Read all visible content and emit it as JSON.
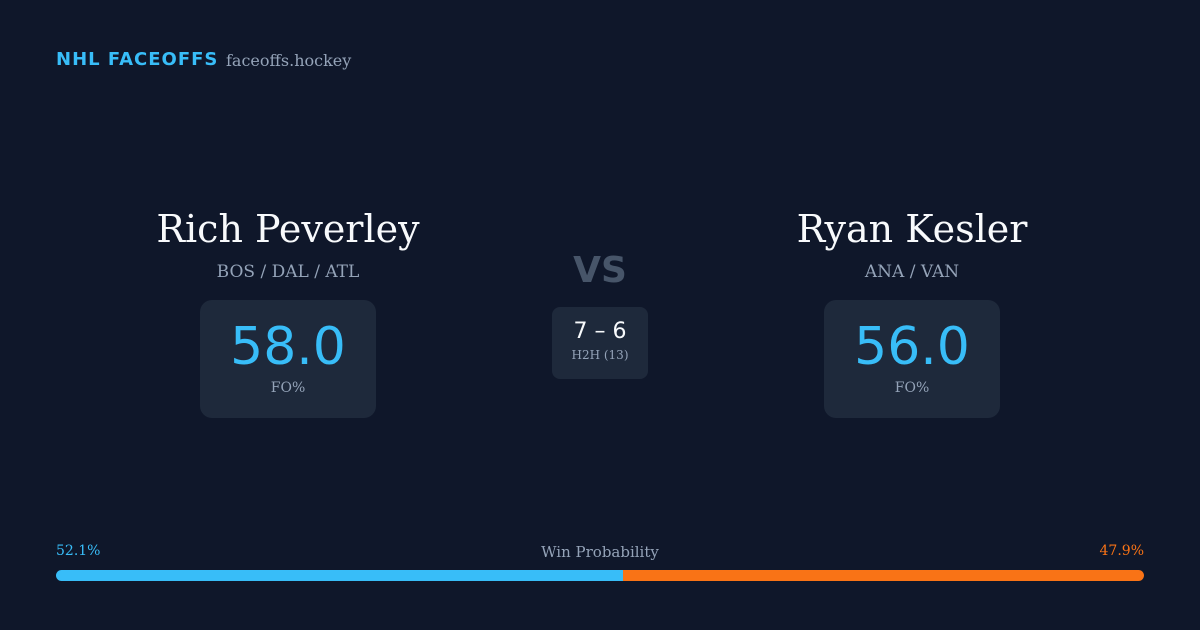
{
  "header": {
    "brand": "NHL FACEOFFS",
    "site": "faceoffs.hockey"
  },
  "players": [
    {
      "name": "Rich Peverley",
      "teams": "BOS / DAL / ATL",
      "fo_pct": "58.0",
      "fo_label": "FO%"
    },
    {
      "name": "Ryan Kesler",
      "teams": "ANA / VAN",
      "fo_pct": "56.0",
      "fo_label": "FO%"
    }
  ],
  "versus": {
    "label": "VS",
    "score": "7 – 6",
    "h2h": "H2H (13)"
  },
  "win_probability": {
    "title": "Win Probability",
    "left": {
      "value": 52.1,
      "label": "52.1%"
    },
    "right": {
      "value": 47.9,
      "label": "47.9%"
    }
  }
}
